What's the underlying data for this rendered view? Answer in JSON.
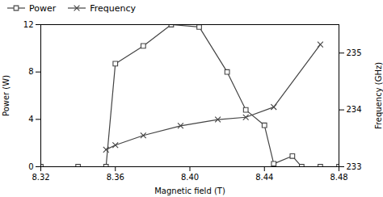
{
  "chart_data": {
    "type": "line",
    "x_label": "Magnetic field (T)",
    "y_label": "Power (W)",
    "y2_label": "Frequency (GHz)",
    "xlim": [
      8.32,
      8.48
    ],
    "xticks": [
      8.32,
      8.36,
      {
        "value": 8.4,
        "label": "8.40"
      },
      8.44,
      8.48
    ],
    "ylim": [
      0,
      12
    ],
    "yticks": [
      0,
      4,
      8,
      12
    ],
    "y2lim": [
      233,
      235.5
    ],
    "y2ticks": [
      233,
      234,
      235
    ],
    "legend": "upper left",
    "series": [
      {
        "name": "Power",
        "axis": "y",
        "color": "#444444",
        "marker": "square",
        "x": [
          8.32,
          8.34,
          8.355,
          8.36,
          8.375,
          8.39,
          8.405,
          8.42,
          8.43,
          8.44,
          8.445,
          8.455,
          8.46,
          8.47,
          8.48
        ],
        "values": [
          0.0,
          0.0,
          0.0,
          8.7,
          10.2,
          12.0,
          11.8,
          8.0,
          4.8,
          3.5,
          0.25,
          0.9,
          0.0,
          0.0,
          0.0
        ]
      },
      {
        "name": "Frequency",
        "axis": "y2",
        "color": "#444444",
        "marker": "x",
        "x": [
          8.355,
          8.36,
          8.375,
          8.395,
          8.415,
          8.43,
          8.445,
          8.47
        ],
        "values": [
          233.3,
          233.38,
          233.55,
          233.72,
          233.83,
          233.87,
          234.05,
          235.15
        ]
      }
    ]
  }
}
